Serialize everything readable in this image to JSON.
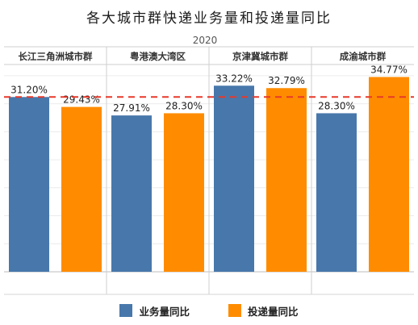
{
  "title": "各大城市群快递业务量和投递量同比",
  "chart_data": {
    "type": "bar",
    "subtitle": "2020",
    "categories": [
      "长江三角洲城市群",
      "粤港澳大湾区",
      "京津冀城市群",
      "成渝城市群"
    ],
    "series": [
      {
        "name": "业务量同比",
        "color": "#4878ab",
        "values": [
          31.2,
          27.91,
          33.22,
          28.3
        ],
        "labels": [
          "31.20%",
          "27.91%",
          "33.22%",
          "28.30%"
        ]
      },
      {
        "name": "投递量同比",
        "color": "#ff8c00",
        "values": [
          29.43,
          28.3,
          32.79,
          34.77
        ],
        "labels": [
          "29.43%",
          "28.30%",
          "32.79%",
          "34.77%"
        ]
      }
    ],
    "reference_line": {
      "value": 31.2,
      "style": "dashed",
      "color": "#e8382a"
    },
    "ylim": [
      0,
      37
    ],
    "grid": true,
    "legend_position": "bottom"
  }
}
